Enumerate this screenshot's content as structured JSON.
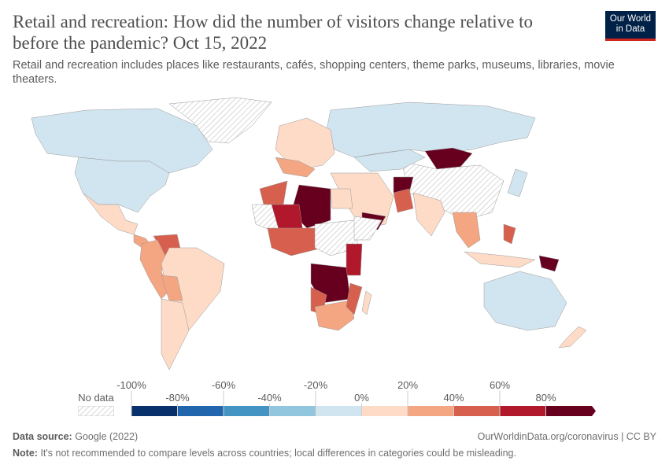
{
  "header": {
    "title": "Retail and recreation: How did the number of visitors change relative to before the pandemic? Oct 15, 2022",
    "subtitle": "Retail and recreation includes places like restaurants, cafés, shopping centers, theme parks, museums, libraries, movie theaters.",
    "logo": "Our World in Data"
  },
  "legend": {
    "no_data_label": "No data",
    "bins": [
      {
        "from": -100,
        "to": -80,
        "color": "#08306b"
      },
      {
        "from": -80,
        "to": -60,
        "color": "#2166ac"
      },
      {
        "from": -60,
        "to": -40,
        "color": "#4393c3"
      },
      {
        "from": -40,
        "to": -20,
        "color": "#92c5de"
      },
      {
        "from": -20,
        "to": 0,
        "color": "#d1e5f0"
      },
      {
        "from": 0,
        "to": 20,
        "color": "#fddbc7"
      },
      {
        "from": 20,
        "to": 40,
        "color": "#f4a582"
      },
      {
        "from": 40,
        "to": 60,
        "color": "#d6604d"
      },
      {
        "from": 60,
        "to": 80,
        "color": "#b2182b"
      },
      {
        "from": 80,
        "to": null,
        "color": "#67001f"
      }
    ],
    "tick_labels": [
      "-100%",
      "-80%",
      "-60%",
      "-40%",
      "-20%",
      "0%",
      "20%",
      "40%",
      "60%",
      "80%"
    ]
  },
  "footer": {
    "source_label": "Data source:",
    "source": "Google (2022)",
    "url": "OurWorldinData.org/coronavirus | CC BY",
    "note_label": "Note:",
    "note": "It's not recommended to compare levels across countries; local differences in categories could be misleading."
  }
}
